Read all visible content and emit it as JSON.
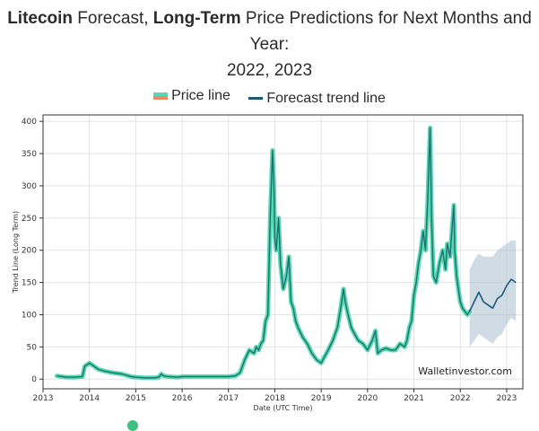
{
  "title": {
    "part1": "Litecoin",
    "part2": " Forecast, ",
    "part3": "Long-Term",
    "part4": " Price Predictions for Next Months and Year:",
    "line2": "2022, 2023"
  },
  "legend": {
    "price_label": "Price line",
    "forecast_label": "Forecast trend line"
  },
  "watermark": "Walletinvestor.com",
  "colors": {
    "price_fill": "#56d9b0",
    "price_line": "#1e6e72",
    "forecast_line": "#1d5a7a",
    "forecast_band": "#a9bfcc"
  },
  "chart_data": {
    "type": "line",
    "xlabel": "Date (UTC Time)",
    "ylabel": "Trend Line (Long Term)",
    "xlim": [
      2013.0,
      2023.35
    ],
    "ylim": [
      -15,
      410
    ],
    "xticks": [
      "2013",
      "2014",
      "2015",
      "2016",
      "2017",
      "2018",
      "2019",
      "2020",
      "2021",
      "2022",
      "2023"
    ],
    "yticks": [
      0,
      50,
      100,
      150,
      200,
      250,
      300,
      350,
      400
    ],
    "grid": true,
    "legend_position": "top",
    "series": [
      {
        "name": "Price line",
        "x": [
          2013.3,
          2013.5,
          2013.7,
          2013.85,
          2013.9,
          2014.0,
          2014.1,
          2014.2,
          2014.35,
          2014.5,
          2014.7,
          2014.9,
          2015.0,
          2015.2,
          2015.4,
          2015.5,
          2015.55,
          2015.6,
          2015.7,
          2015.9,
          2016.0,
          2016.3,
          2016.6,
          2016.9,
          2017.0,
          2017.15,
          2017.25,
          2017.35,
          2017.45,
          2017.55,
          2017.6,
          2017.65,
          2017.7,
          2017.75,
          2017.8,
          2017.85,
          2017.9,
          2017.95,
          2017.98,
          2018.0,
          2018.03,
          2018.08,
          2018.12,
          2018.18,
          2018.25,
          2018.3,
          2018.35,
          2018.4,
          2018.45,
          2018.5,
          2018.6,
          2018.7,
          2018.8,
          2018.9,
          2019.0,
          2019.05,
          2019.15,
          2019.25,
          2019.35,
          2019.42,
          2019.48,
          2019.52,
          2019.58,
          2019.65,
          2019.72,
          2019.8,
          2019.9,
          2020.0,
          2020.1,
          2020.17,
          2020.22,
          2020.3,
          2020.4,
          2020.5,
          2020.6,
          2020.7,
          2020.8,
          2020.85,
          2020.9,
          2020.95,
          2021.0,
          2021.05,
          2021.1,
          2021.15,
          2021.2,
          2021.25,
          2021.3,
          2021.33,
          2021.35,
          2021.38,
          2021.42,
          2021.48,
          2021.55,
          2021.62,
          2021.68,
          2021.72,
          2021.78,
          2021.82,
          2021.86,
          2021.88,
          2021.92,
          2021.96,
          2022.0,
          2022.05,
          2022.1,
          2022.15,
          2022.2
        ],
        "values": [
          5,
          3,
          3,
          4,
          20,
          25,
          20,
          15,
          12,
          10,
          8,
          4,
          3,
          2,
          2,
          3,
          8,
          5,
          4,
          3,
          4,
          4,
          4,
          4,
          4,
          5,
          10,
          30,
          45,
          40,
          50,
          45,
          55,
          60,
          90,
          100,
          250,
          355,
          300,
          220,
          200,
          250,
          180,
          140,
          160,
          190,
          120,
          110,
          90,
          80,
          65,
          55,
          40,
          30,
          25,
          32,
          45,
          60,
          80,
          110,
          140,
          120,
          100,
          80,
          70,
          60,
          55,
          45,
          60,
          75,
          40,
          45,
          48,
          45,
          45,
          55,
          50,
          60,
          80,
          90,
          130,
          150,
          180,
          200,
          230,
          200,
          280,
          350,
          390,
          250,
          160,
          150,
          180,
          200,
          170,
          210,
          190,
          230,
          270,
          200,
          160,
          140,
          120,
          110,
          105,
          100,
          105
        ]
      },
      {
        "name": "Forecast trend line",
        "x": [
          2022.2,
          2022.3,
          2022.4,
          2022.5,
          2022.6,
          2022.7,
          2022.8,
          2022.9,
          2023.0,
          2023.1,
          2023.2
        ],
        "values": [
          105,
          120,
          135,
          120,
          115,
          110,
          125,
          130,
          145,
          155,
          150
        ],
        "upper": [
          170,
          185,
          195,
          190,
          190,
          190,
          200,
          205,
          210,
          215,
          215
        ],
        "lower": [
          50,
          60,
          70,
          65,
          60,
          55,
          65,
          70,
          85,
          95,
          90
        ]
      }
    ]
  }
}
